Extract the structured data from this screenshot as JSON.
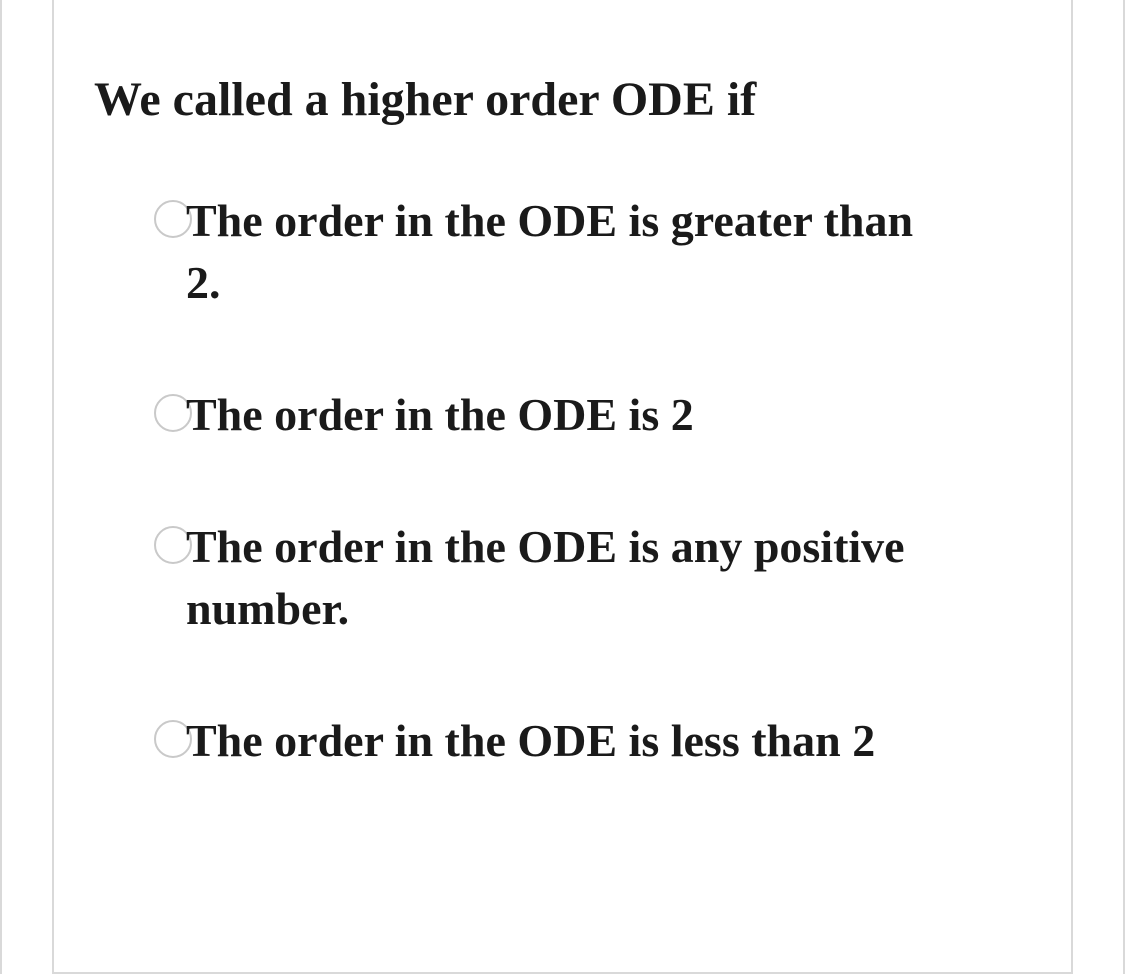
{
  "colors": {
    "background": "#ffffff",
    "text": "#1a1a1a",
    "border": "#d9d9d9",
    "radio_border": "#c9c9c9"
  },
  "typography": {
    "font_family": "Georgia, Times New Roman, serif",
    "question_fontsize_pt": 36,
    "option_fontsize_pt": 34,
    "font_weight": "bold"
  },
  "question": {
    "text": "We called a higher order ODE if"
  },
  "options": [
    {
      "label": "The order in the ODE is greater than 2.",
      "selected": false
    },
    {
      "label": "The order in the ODE is  2",
      "selected": false
    },
    {
      "label": "The order in the ODE is any positive number.",
      "selected": false
    },
    {
      "label": "The order in the ODE is less than 2",
      "selected": false
    }
  ]
}
